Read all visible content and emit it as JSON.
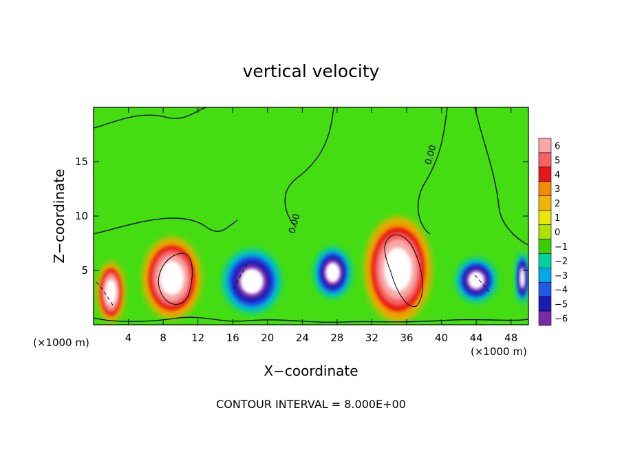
{
  "chart_data": {
    "type": "heatmap",
    "title": "vertical velocity",
    "xlabel": "X−coordinate",
    "ylabel": "Z−coordinate",
    "x_unit_left": "(×1000 m)",
    "x_unit_right": "(×1000 m)",
    "xlim": [
      0,
      50
    ],
    "ylim": [
      0,
      20
    ],
    "x_ticks": [
      4,
      8,
      12,
      16,
      20,
      24,
      28,
      32,
      36,
      40,
      44,
      48
    ],
    "y_ticks": [
      5,
      10,
      15
    ],
    "colorbar": {
      "levels": [
        6,
        5,
        4,
        3,
        2,
        1,
        0,
        -1,
        -2,
        -3,
        -4,
        -5,
        -6
      ],
      "level_labels": [
        "6",
        "5",
        "4",
        "3",
        "2",
        "1",
        "0",
        "−1",
        "−2",
        "−3",
        "−4",
        "−5",
        "−6"
      ],
      "colors": [
        "#f7a7a7",
        "#f56060",
        "#e81515",
        "#f28b00",
        "#f2b600",
        "#e8e800",
        "#b0e000",
        "#3ccf00",
        "#00d2a0",
        "#00a9e8",
        "#1e5ae8",
        "#1a1ab4",
        "#7a2aa8"
      ]
    },
    "field_color": "#44dd11",
    "contour_labels": [
      "0.00",
      "0.00"
    ],
    "footer": "CONTOUR INTERVAL = 8.000E+00",
    "grid": false,
    "features": [
      {
        "kind": "updraft",
        "x_center": 2.0,
        "z_center": 3.0,
        "x_halfwidth": 1.5,
        "z_halfwidth": 2.7
      },
      {
        "kind": "updraft",
        "x_center": 9.0,
        "z_center": 4.3,
        "x_halfwidth": 3.3,
        "z_halfwidth": 3.7
      },
      {
        "kind": "downdraft",
        "x_center": 18.2,
        "z_center": 4.0,
        "x_halfwidth": 3.2,
        "z_halfwidth": 2.8
      },
      {
        "kind": "downdraft",
        "x_center": 27.5,
        "z_center": 4.8,
        "x_halfwidth": 2.0,
        "z_halfwidth": 2.2
      },
      {
        "kind": "updraft",
        "x_center": 35.0,
        "z_center": 5.1,
        "x_halfwidth": 3.8,
        "z_halfwidth": 4.8
      },
      {
        "kind": "downdraft",
        "x_center": 44.0,
        "z_center": 4.1,
        "x_halfwidth": 2.2,
        "z_halfwidth": 1.9
      },
      {
        "kind": "downdraft",
        "x_center": 49.3,
        "z_center": 4.3,
        "x_halfwidth": 0.7,
        "z_halfwidth": 2.2
      }
    ]
  }
}
